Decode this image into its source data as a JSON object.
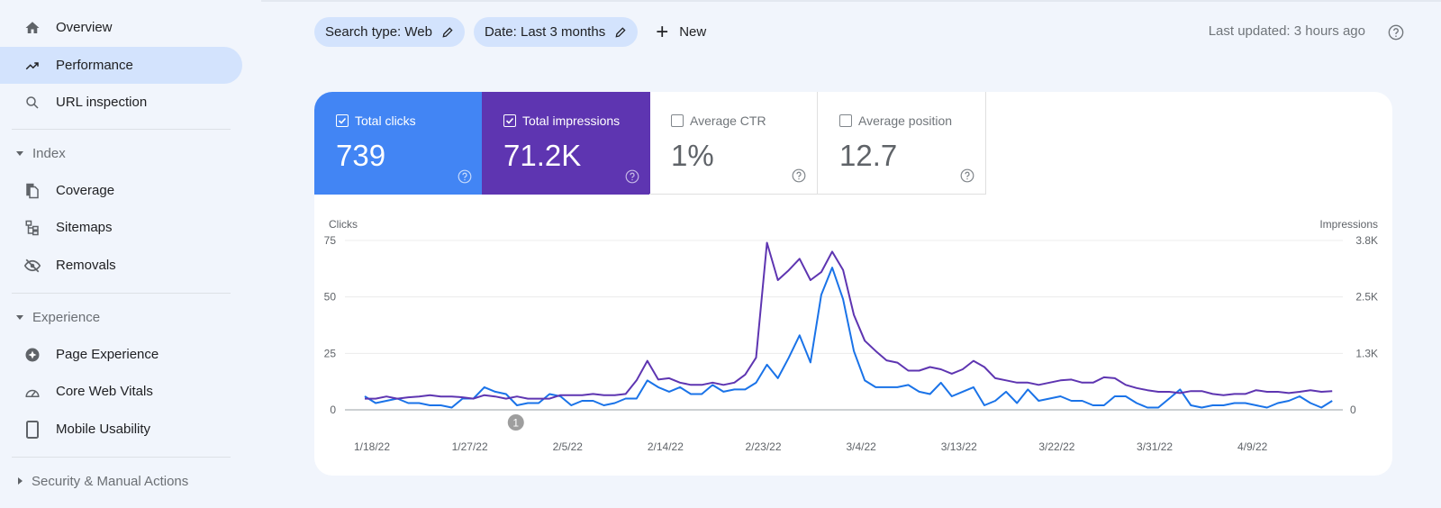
{
  "sidebar": {
    "items": [
      {
        "label": "Overview",
        "icon": "home-icon"
      },
      {
        "label": "Performance",
        "icon": "trending-up-icon",
        "active": true
      },
      {
        "label": "URL inspection",
        "icon": "search-icon"
      }
    ],
    "sections": [
      {
        "label": "Index",
        "expanded": true,
        "items": [
          {
            "label": "Coverage",
            "icon": "coverage-icon"
          },
          {
            "label": "Sitemaps",
            "icon": "sitemap-icon"
          },
          {
            "label": "Removals",
            "icon": "eye-off-icon"
          }
        ]
      },
      {
        "label": "Experience",
        "expanded": true,
        "items": [
          {
            "label": "Page Experience",
            "icon": "page-experience-icon"
          },
          {
            "label": "Core Web Vitals",
            "icon": "gauge-icon"
          },
          {
            "label": "Mobile Usability",
            "icon": "phone-icon"
          }
        ]
      },
      {
        "label": "Security & Manual Actions",
        "expanded": false,
        "items": []
      }
    ]
  },
  "filters": {
    "search_type": "Search type: Web",
    "date": "Date: Last 3 months",
    "new_label": "New"
  },
  "last_updated": "Last updated: 3 hours ago",
  "metrics": [
    {
      "label": "Total clicks",
      "value": "739",
      "checked": true,
      "color": "#4285f4"
    },
    {
      "label": "Total impressions",
      "value": "71.2K",
      "checked": true,
      "color": "#5e35b1"
    },
    {
      "label": "Average CTR",
      "value": "1%",
      "checked": false
    },
    {
      "label": "Average position",
      "value": "12.7",
      "checked": false
    }
  ],
  "chart_data": {
    "type": "line",
    "xlabel": "",
    "y_left_label": "Clicks",
    "y_right_label": "Impressions",
    "y_left_ticks": [
      "0",
      "25",
      "50",
      "75"
    ],
    "y_right_ticks": [
      "0",
      "1.3K",
      "2.5K",
      "3.8K"
    ],
    "y_left_range": [
      0,
      75
    ],
    "y_right_range": [
      0,
      3800
    ],
    "x_start": "1/18/22",
    "x_tick_labels": [
      "1/18/22",
      "1/27/22",
      "2/5/22",
      "2/14/22",
      "2/23/22",
      "3/4/22",
      "3/13/22",
      "3/22/22",
      "3/31/22",
      "4/9/22"
    ],
    "grid": true,
    "annotation": {
      "label": "1",
      "date": "1/31/22"
    },
    "series": [
      {
        "name": "Clicks",
        "axis": "left",
        "color": "#1a73e8",
        "values": [
          6,
          3,
          4,
          5,
          3,
          3,
          2,
          2,
          1,
          5,
          5,
          10,
          8,
          7,
          2,
          3,
          3,
          7,
          6,
          2,
          4,
          4,
          2,
          3,
          5,
          5,
          13,
          10,
          8,
          10,
          7,
          7,
          11,
          8,
          9,
          9,
          12,
          20,
          14,
          23,
          33,
          21,
          51,
          63,
          49,
          26,
          13,
          10,
          10,
          10,
          11,
          8,
          7,
          12,
          6,
          8,
          10,
          2,
          4,
          8,
          3,
          9,
          4,
          5,
          6,
          4,
          4,
          2,
          2,
          6,
          6,
          3,
          1,
          1,
          5,
          9,
          2,
          1,
          2,
          2,
          3,
          3,
          2,
          1,
          3,
          4,
          6,
          3,
          1,
          4
        ]
      },
      {
        "name": "Impressions",
        "axis": "right",
        "color": "#5e35b1",
        "values": [
          250,
          250,
          300,
          250,
          280,
          300,
          330,
          300,
          300,
          280,
          250,
          330,
          300,
          250,
          300,
          250,
          250,
          250,
          330,
          330,
          330,
          355,
          330,
          330,
          355,
          660,
          1100,
          680,
          710,
          610,
          560,
          560,
          610,
          560,
          610,
          790,
          1170,
          3750,
          2910,
          3130,
          3390,
          2910,
          3090,
          3550,
          3140,
          2130,
          1550,
          1320,
          1110,
          1060,
          880,
          880,
          960,
          910,
          810,
          910,
          1100,
          960,
          710,
          660,
          610,
          610,
          560,
          610,
          660,
          680,
          610,
          610,
          730,
          710,
          560,
          490,
          440,
          405,
          405,
          375,
          420,
          420,
          355,
          330,
          355,
          355,
          440,
          405,
          405,
          375,
          405,
          440,
          405,
          420
        ]
      }
    ]
  }
}
